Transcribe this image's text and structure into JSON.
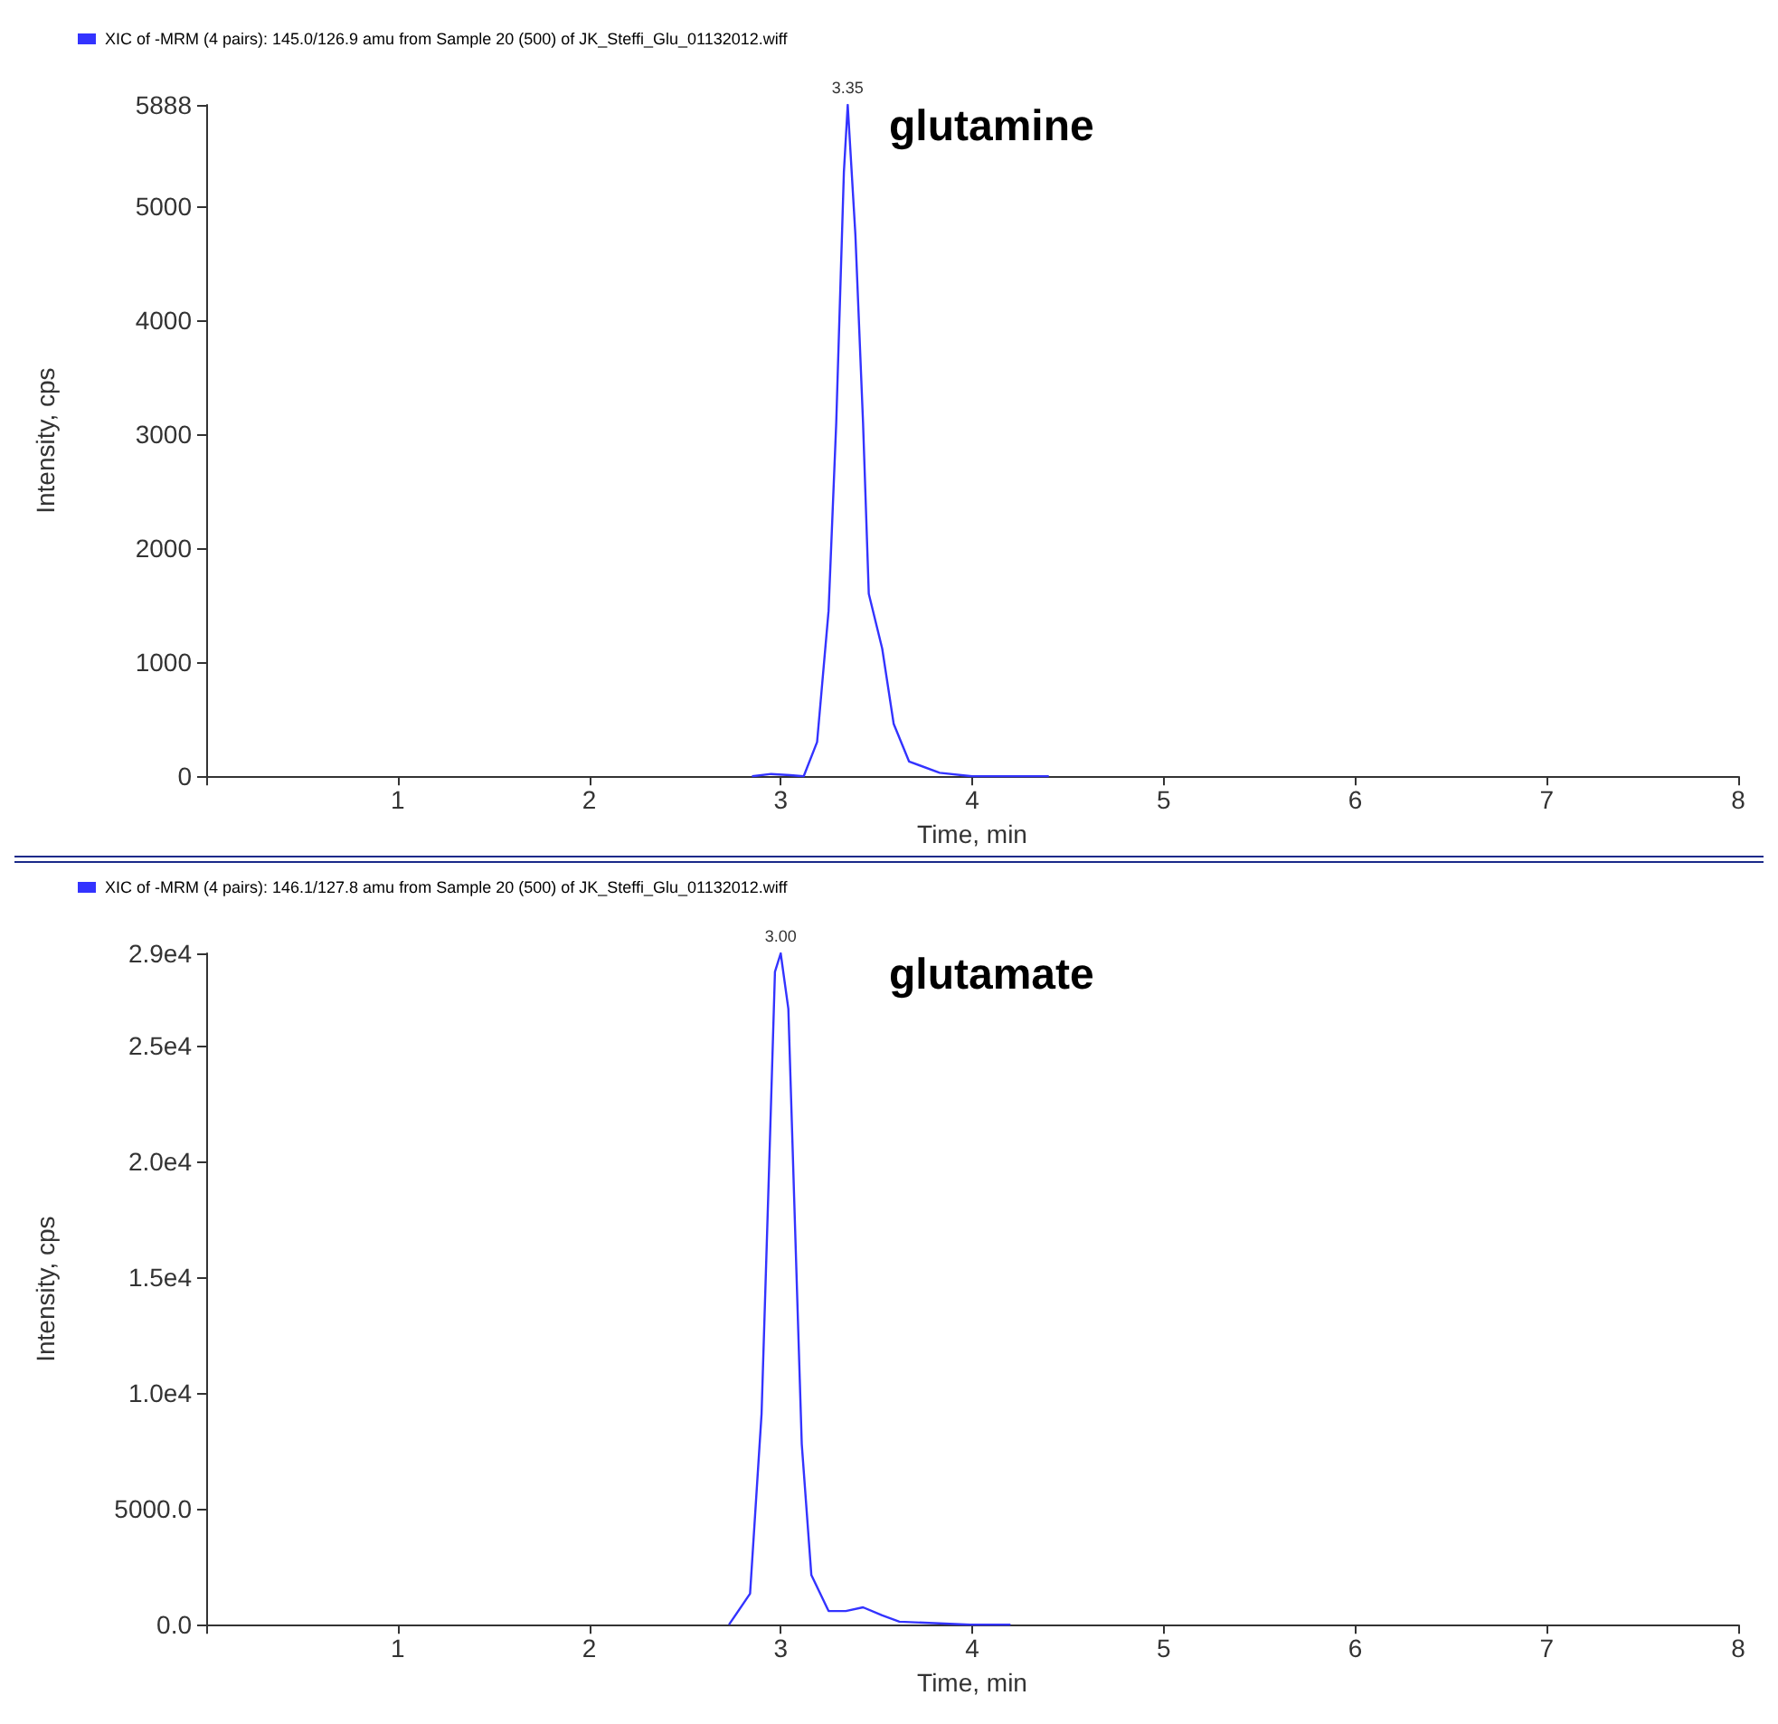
{
  "chart_data": [
    {
      "type": "line",
      "xlabel": "Time, min",
      "ylabel": "Intensity, cps",
      "xlim": [
        0,
        8
      ],
      "ylim": [
        0,
        5888
      ],
      "xticks": [
        {
          "value": 0,
          "label": null
        },
        1,
        2,
        3,
        4,
        5,
        6,
        7,
        8
      ],
      "yticks": [
        0,
        1000,
        2000,
        3000,
        4000,
        5000,
        5888
      ],
      "legend": "top left",
      "grid": false,
      "marker": "none",
      "line_style": "solid",
      "annotations": [
        {
          "text": "3.35",
          "x": 3.35,
          "y": 5888
        },
        "glutamine"
      ],
      "series": [
        {
          "name": "XIC of -MRM (4 pairs): 145.0/126.9 amu from Sample 20 (500) of JK_Steffi_Glu_01132012.wiff",
          "color": "#3333ff",
          "x": [
            2.85,
            2.95,
            3.05,
            3.12,
            3.19,
            3.25,
            3.29,
            3.33,
            3.35,
            3.39,
            3.43,
            3.46,
            3.53,
            3.59,
            3.67,
            3.83,
            4.0,
            4.4
          ],
          "values": [
            0,
            20,
            10,
            0,
            300,
            1450,
            3100,
            5300,
            5888,
            4750,
            3100,
            1600,
            1120,
            460,
            130,
            30,
            0,
            0
          ]
        }
      ]
    },
    {
      "type": "line",
      "xlabel": "Time, min",
      "ylabel": "Intensity, cps",
      "xlim": [
        0,
        8
      ],
      "ylim": [
        0,
        29000
      ],
      "xticks": [
        {
          "value": 0,
          "label": null
        },
        1,
        2,
        3,
        4,
        5,
        6,
        7,
        8
      ],
      "yticks": [
        {
          "value": 0,
          "label": "0.0"
        },
        {
          "value": 5000,
          "label": "5000.0"
        },
        {
          "value": 10000,
          "label": "1.0e4"
        },
        {
          "value": 15000,
          "label": "1.5e4"
        },
        {
          "value": 20000,
          "label": "2.0e4"
        },
        {
          "value": 25000,
          "label": "2.5e4"
        },
        {
          "value": 29000,
          "label": "2.9e4"
        }
      ],
      "legend": "top left",
      "grid": false,
      "marker": "none",
      "line_style": "solid",
      "annotations": [
        {
          "text": "3.00",
          "x": 3.0,
          "y": 29000
        },
        "glutamate"
      ],
      "series": [
        {
          "name": "XIC of -MRM (4 pairs): 146.1/127.8 amu from Sample 20 (500) of JK_Steffi_Glu_01132012.wiff",
          "color": "#3333ff",
          "x": [
            2.73,
            2.84,
            2.9,
            2.94,
            2.97,
            3.0,
            3.04,
            3.07,
            3.11,
            3.16,
            3.25,
            3.34,
            3.43,
            3.53,
            3.62,
            3.99,
            4.2
          ],
          "values": [
            0,
            1340,
            9100,
            19900,
            28200,
            29000,
            26600,
            18500,
            7800,
            2150,
            590,
            590,
            750,
            400,
            130,
            0,
            0
          ]
        }
      ]
    }
  ]
}
